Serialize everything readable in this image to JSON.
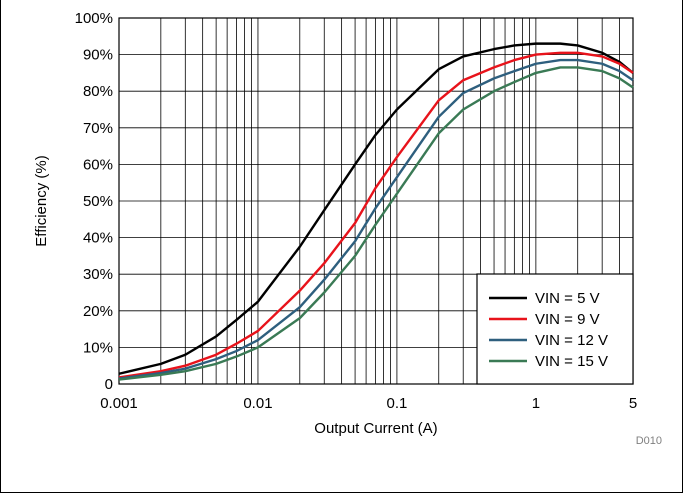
{
  "chart_data": {
    "type": "line",
    "xlabel": "Output Current (A)",
    "ylabel": "Efficiency (%)",
    "xscale": "log",
    "xlim": [
      0.001,
      5
    ],
    "ylim": [
      0,
      100
    ],
    "x_ticks": [
      {
        "value": 0.001,
        "label": "0.001"
      },
      {
        "value": 0.01,
        "label": "0.01"
      },
      {
        "value": 0.1,
        "label": "0.1"
      },
      {
        "value": 1,
        "label": "1"
      },
      {
        "value": 5,
        "label": "5"
      }
    ],
    "y_ticks": [
      {
        "value": 0,
        "label": "0"
      },
      {
        "value": 10,
        "label": "10%"
      },
      {
        "value": 20,
        "label": "20%"
      },
      {
        "value": 30,
        "label": "30%"
      },
      {
        "value": 40,
        "label": "40%"
      },
      {
        "value": 50,
        "label": "50%"
      },
      {
        "value": 60,
        "label": "60%"
      },
      {
        "value": 70,
        "label": "70%"
      },
      {
        "value": 80,
        "label": "80%"
      },
      {
        "value": 90,
        "label": "90%"
      },
      {
        "value": 100,
        "label": "100%"
      }
    ],
    "grid": true,
    "legend_position": "bottom-right",
    "annotation": "D010",
    "x": [
      0.001,
      0.002,
      0.003,
      0.005,
      0.007,
      0.01,
      0.02,
      0.03,
      0.05,
      0.07,
      0.1,
      0.2,
      0.3,
      0.5,
      0.7,
      1,
      1.5,
      2,
      3,
      4,
      5
    ],
    "series": [
      {
        "name": "VIN = 5 V",
        "color": "#000000",
        "values": [
          2.8,
          5.5,
          8,
          13,
          17.5,
          22.5,
          37.5,
          47.5,
          60,
          68,
          75,
          86,
          89.5,
          91.5,
          92.5,
          93,
          93,
          92.5,
          90.5,
          88,
          85
        ]
      },
      {
        "name": "VIN = 9 V",
        "color": "#e8131b",
        "values": [
          1.8,
          3.5,
          5,
          8,
          11,
          14.5,
          25.5,
          33,
          44,
          53.5,
          62,
          77.5,
          83,
          86.5,
          88.5,
          90,
          90.5,
          90.5,
          89.5,
          87.5,
          85
        ]
      },
      {
        "name": "VIN = 12 V",
        "color": "#2e5f7e",
        "values": [
          1.5,
          3,
          4.2,
          6.8,
          9,
          12,
          21,
          28.5,
          39,
          48,
          56.5,
          73,
          79.5,
          83.5,
          85.5,
          87.5,
          88.5,
          88.5,
          87.5,
          85.5,
          83
        ]
      },
      {
        "name": "VIN = 15 V",
        "color": "#3a7a55",
        "values": [
          1.2,
          2.5,
          3.5,
          5.5,
          7.5,
          10,
          18,
          25,
          35,
          43.5,
          52,
          68.5,
          75,
          80,
          82.5,
          85,
          86.5,
          86.5,
          85.5,
          83.5,
          81
        ]
      }
    ]
  }
}
